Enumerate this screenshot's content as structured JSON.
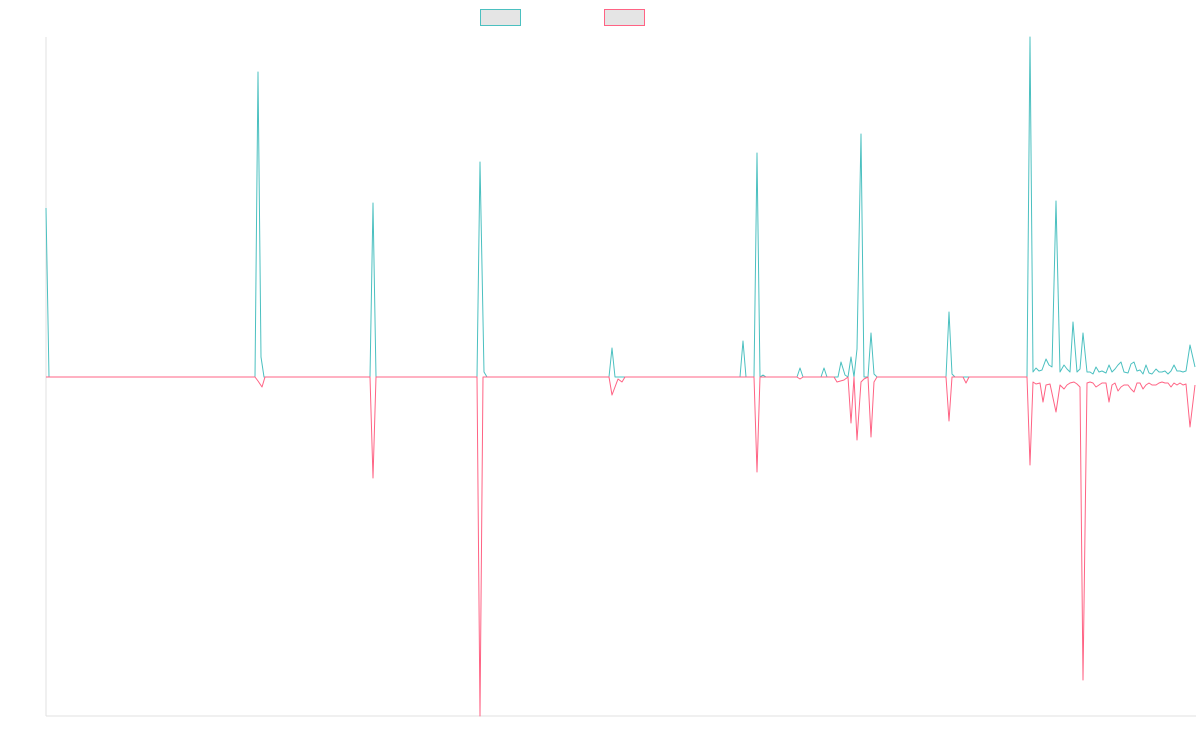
{
  "chart_data": {
    "type": "line",
    "title": "",
    "xlabel": "",
    "ylabel": "",
    "xlim": [
      0,
      1149
    ],
    "ylim": [
      -339,
      340
    ],
    "grid": false,
    "legend": "top-center",
    "series": [
      {
        "name": "",
        "color": "#4bc0c0",
        "points": [
          [
            0,
            169
          ],
          [
            3,
            0
          ],
          [
            209,
            0
          ],
          [
            212,
            305
          ],
          [
            215,
            20
          ],
          [
            218,
            0
          ],
          [
            324,
            0
          ],
          [
            327,
            174
          ],
          [
            330,
            0
          ],
          [
            431,
            0
          ],
          [
            434,
            215
          ],
          [
            438,
            5
          ],
          [
            441,
            0
          ],
          [
            563,
            0
          ],
          [
            566,
            29
          ],
          [
            569,
            0
          ],
          [
            694,
            0
          ],
          [
            697,
            36
          ],
          [
            700,
            0
          ],
          [
            708,
            0
          ],
          [
            711,
            224
          ],
          [
            714,
            0
          ],
          [
            717,
            2
          ],
          [
            720,
            0
          ],
          [
            751,
            0
          ],
          [
            754,
            9
          ],
          [
            757,
            0
          ],
          [
            775,
            0
          ],
          [
            778,
            9
          ],
          [
            781,
            0
          ],
          [
            792,
            0
          ],
          [
            795,
            15
          ],
          [
            799,
            2
          ],
          [
            802,
            0
          ],
          [
            805,
            20
          ],
          [
            808,
            0
          ],
          [
            811,
            28
          ],
          [
            815,
            243
          ],
          [
            818,
            0
          ],
          [
            822,
            0
          ],
          [
            825,
            44
          ],
          [
            828,
            3
          ],
          [
            831,
            0
          ],
          [
            900,
            0
          ],
          [
            903,
            65
          ],
          [
            906,
            3
          ],
          [
            909,
            0
          ],
          [
            981,
            0
          ],
          [
            984,
            340
          ],
          [
            987,
            5
          ],
          [
            990,
            9
          ],
          [
            993,
            6
          ],
          [
            996,
            7
          ],
          [
            1000,
            18
          ],
          [
            1003,
            12
          ],
          [
            1006,
            10
          ],
          [
            1010,
            176
          ],
          [
            1014,
            5
          ],
          [
            1018,
            12
          ],
          [
            1021,
            8
          ],
          [
            1024,
            5
          ],
          [
            1027,
            55
          ],
          [
            1031,
            5
          ],
          [
            1034,
            8
          ],
          [
            1037,
            44
          ],
          [
            1041,
            5
          ],
          [
            1044,
            5
          ],
          [
            1047,
            3
          ],
          [
            1050,
            10
          ],
          [
            1053,
            5
          ],
          [
            1056,
            6
          ],
          [
            1060,
            4
          ],
          [
            1063,
            12
          ],
          [
            1066,
            5
          ],
          [
            1069,
            8
          ],
          [
            1072,
            12
          ],
          [
            1075,
            15
          ],
          [
            1078,
            5
          ],
          [
            1082,
            4
          ],
          [
            1085,
            13
          ],
          [
            1088,
            15
          ],
          [
            1091,
            6
          ],
          [
            1094,
            7
          ],
          [
            1097,
            3
          ],
          [
            1100,
            12
          ],
          [
            1103,
            4
          ],
          [
            1106,
            3
          ],
          [
            1110,
            8
          ],
          [
            1113,
            5
          ],
          [
            1116,
            5
          ],
          [
            1119,
            6
          ],
          [
            1122,
            3
          ],
          [
            1125,
            6
          ],
          [
            1128,
            12
          ],
          [
            1131,
            6
          ],
          [
            1134,
            6
          ],
          [
            1137,
            5
          ],
          [
            1140,
            6
          ],
          [
            1144,
            32
          ],
          [
            1149,
            10
          ]
        ]
      },
      {
        "name": "",
        "color": "#ff6384",
        "points": [
          [
            0,
            0
          ],
          [
            209,
            0
          ],
          [
            212,
            -4
          ],
          [
            216,
            -10
          ],
          [
            219,
            0
          ],
          [
            324,
            0
          ],
          [
            327,
            -101
          ],
          [
            330,
            0
          ],
          [
            431,
            0
          ],
          [
            434,
            -339
          ],
          [
            437,
            0
          ],
          [
            563,
            0
          ],
          [
            566,
            -18
          ],
          [
            572,
            -2
          ],
          [
            576,
            -5
          ],
          [
            579,
            0
          ],
          [
            708,
            0
          ],
          [
            711,
            -95
          ],
          [
            714,
            0
          ],
          [
            751,
            0
          ],
          [
            754,
            -2
          ],
          [
            757,
            0
          ],
          [
            788,
            0
          ],
          [
            791,
            -5
          ],
          [
            798,
            -3
          ],
          [
            802,
            0
          ],
          [
            805,
            -46
          ],
          [
            808,
            0
          ],
          [
            811,
            -63
          ],
          [
            815,
            -5
          ],
          [
            818,
            -2
          ],
          [
            822,
            0
          ],
          [
            825,
            -60
          ],
          [
            828,
            -5
          ],
          [
            831,
            0
          ],
          [
            900,
            0
          ],
          [
            903,
            -44
          ],
          [
            906,
            0
          ],
          [
            917,
            0
          ],
          [
            920,
            -6
          ],
          [
            923,
            0
          ],
          [
            981,
            0
          ],
          [
            984,
            -88
          ],
          [
            987,
            -5
          ],
          [
            990,
            -7
          ],
          [
            994,
            -6
          ],
          [
            997,
            -25
          ],
          [
            1000,
            -8
          ],
          [
            1004,
            -7
          ],
          [
            1010,
            -35
          ],
          [
            1014,
            -8
          ],
          [
            1018,
            -12
          ],
          [
            1021,
            -8
          ],
          [
            1024,
            -6
          ],
          [
            1028,
            -5
          ],
          [
            1031,
            -7
          ],
          [
            1034,
            -10
          ],
          [
            1037,
            -303
          ],
          [
            1041,
            -6
          ],
          [
            1044,
            -5
          ],
          [
            1047,
            -6
          ],
          [
            1050,
            -10
          ],
          [
            1053,
            -8
          ],
          [
            1056,
            -6
          ],
          [
            1060,
            -6
          ],
          [
            1063,
            -25
          ],
          [
            1066,
            -8
          ],
          [
            1069,
            -6
          ],
          [
            1072,
            -14
          ],
          [
            1075,
            -10
          ],
          [
            1078,
            -8
          ],
          [
            1082,
            -8
          ],
          [
            1085,
            -12
          ],
          [
            1088,
            -15
          ],
          [
            1091,
            -6
          ],
          [
            1094,
            -6
          ],
          [
            1097,
            -12
          ],
          [
            1100,
            -8
          ],
          [
            1103,
            -6
          ],
          [
            1106,
            -8
          ],
          [
            1110,
            -8
          ],
          [
            1113,
            -6
          ],
          [
            1116,
            -5
          ],
          [
            1119,
            -6
          ],
          [
            1122,
            -6
          ],
          [
            1125,
            -10
          ],
          [
            1128,
            -6
          ],
          [
            1131,
            -8
          ],
          [
            1134,
            -6
          ],
          [
            1137,
            -8
          ],
          [
            1140,
            -7
          ],
          [
            1144,
            -50
          ],
          [
            1149,
            -8
          ]
        ]
      }
    ]
  }
}
